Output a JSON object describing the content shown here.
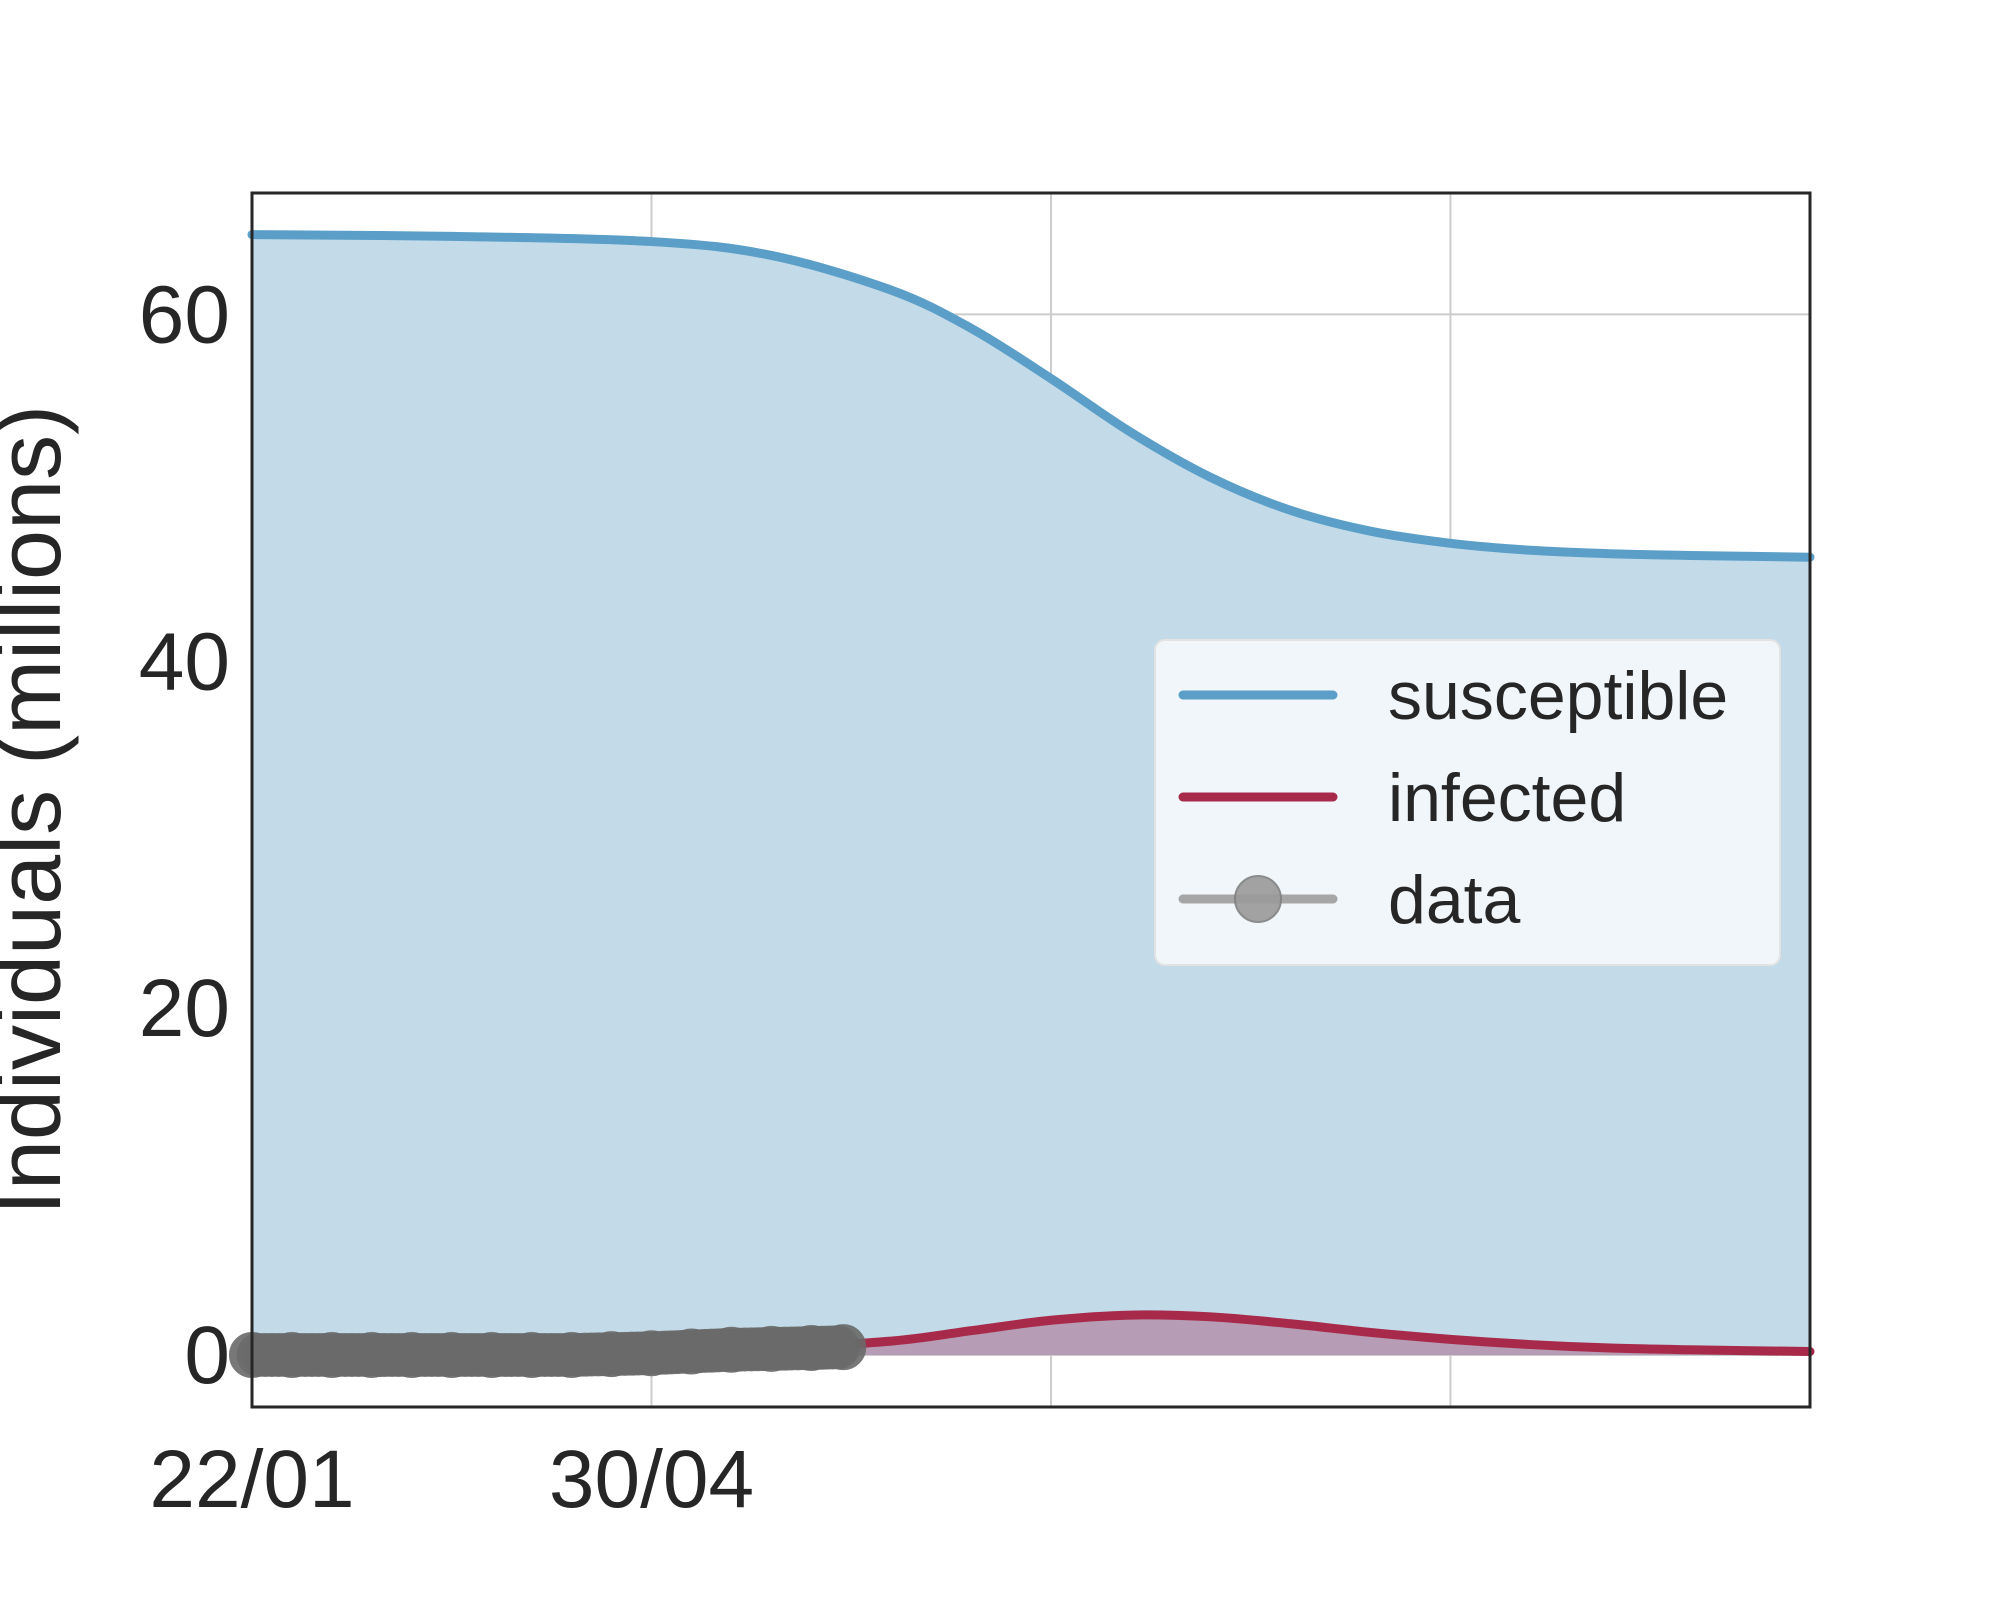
{
  "chart_data": {
    "type": "area",
    "title": "",
    "xlabel": "",
    "ylabel": "Individuals (millions)",
    "x_tick_labels": [
      "22/01",
      "30/04"
    ],
    "y_ticks": [
      0,
      20,
      40,
      60
    ],
    "xlim": [
      0,
      390
    ],
    "ylim": [
      -3,
      67
    ],
    "grid": true,
    "legend_position": "center-right",
    "x_unit": "days from first date",
    "series": [
      {
        "name": "susceptible",
        "color": "#5b9fc8",
        "fill": true,
        "x": [
          0,
          50,
          100,
          130,
          160,
          180,
          200,
          220,
          240,
          260,
          280,
          300,
          320,
          340,
          360,
          390
        ],
        "values": [
          64.6,
          64.5,
          64.2,
          63.4,
          61.4,
          59.2,
          56.3,
          53.2,
          50.6,
          48.7,
          47.5,
          46.8,
          46.4,
          46.2,
          46.1,
          46.0
        ]
      },
      {
        "name": "infected",
        "color": "#a82a4a",
        "fill": true,
        "x": [
          0,
          50,
          100,
          130,
          160,
          180,
          200,
          220,
          240,
          260,
          280,
          300,
          320,
          340,
          360,
          390
        ],
        "values": [
          0.05,
          0.1,
          0.2,
          0.4,
          0.8,
          1.4,
          2.0,
          2.3,
          2.2,
          1.8,
          1.3,
          0.9,
          0.6,
          0.4,
          0.3,
          0.2
        ]
      },
      {
        "name": "data",
        "color": "#6a6a6a",
        "marker": "circle",
        "x": [
          0,
          10,
          20,
          30,
          40,
          50,
          60,
          70,
          80,
          90,
          100,
          110,
          120,
          130,
          140,
          148
        ],
        "values": [
          0.0,
          0.0,
          0.0,
          0.0,
          0.0,
          0.0,
          0.0,
          0.0,
          0.0,
          0.05,
          0.1,
          0.2,
          0.3,
          0.35,
          0.4,
          0.45
        ]
      }
    ]
  }
}
